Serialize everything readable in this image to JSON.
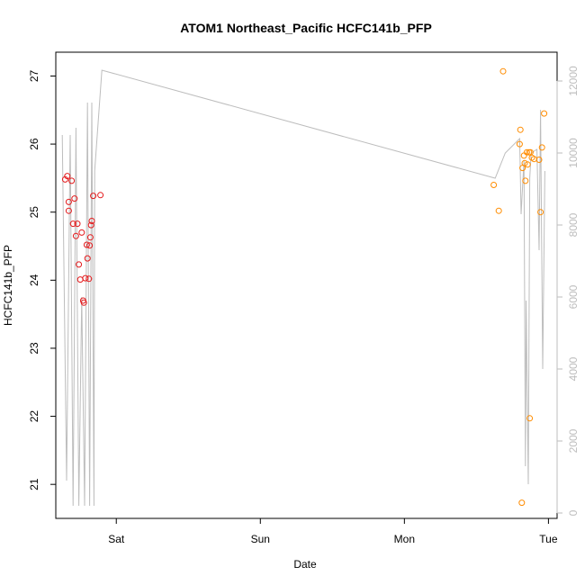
{
  "chart_data": {
    "type": "scatter",
    "title": "ATOM1 Northeast_Pacific HCFC141b_PFP",
    "xlabel": "Date",
    "ylabel": "HCFC141b_PFP",
    "x_ticks": [
      "Sat",
      "Sun",
      "Mon",
      "Tue"
    ],
    "y_ticks": [
      21,
      22,
      23,
      24,
      25,
      26,
      27
    ],
    "y2_ticks": [
      0,
      2000,
      4000,
      6000,
      8000,
      10000,
      12000
    ],
    "xlim_days": [
      -0.42,
      3.06
    ],
    "ylim": [
      20.5,
      27.35
    ],
    "y2lim": [
      -150,
      12800
    ],
    "colors": {
      "series_red": "#e41a1c",
      "series_orange": "#ff8c00",
      "altitude_line": "#bdbdbd",
      "right_axis": "#bdbdbd"
    },
    "series": [
      {
        "color": "#e41a1c",
        "points": [
          [
            -0.355,
            25.48
          ],
          [
            -0.34,
            25.53
          ],
          [
            -0.33,
            25.15
          ],
          [
            -0.33,
            25.02
          ],
          [
            -0.31,
            25.46
          ],
          [
            -0.3,
            24.83
          ],
          [
            -0.29,
            25.2
          ],
          [
            -0.28,
            24.65
          ],
          [
            -0.27,
            24.83
          ],
          [
            -0.26,
            24.23
          ],
          [
            -0.25,
            24.01
          ],
          [
            -0.24,
            24.7
          ],
          [
            -0.23,
            23.7
          ],
          [
            -0.225,
            23.67
          ],
          [
            -0.215,
            24.03
          ],
          [
            -0.205,
            24.52
          ],
          [
            -0.2,
            24.32
          ],
          [
            -0.19,
            24.02
          ],
          [
            -0.185,
            24.51
          ],
          [
            -0.18,
            24.63
          ],
          [
            -0.175,
            24.81
          ],
          [
            -0.17,
            24.87
          ],
          [
            -0.16,
            25.24
          ],
          [
            -0.11,
            25.25
          ]
        ]
      },
      {
        "color": "#ff8c00",
        "points": [
          [
            2.62,
            25.4
          ],
          [
            2.655,
            25.02
          ],
          [
            2.685,
            27.07
          ],
          [
            2.8,
            26.0
          ],
          [
            2.805,
            26.21
          ],
          [
            2.82,
            25.65
          ],
          [
            2.83,
            25.83
          ],
          [
            2.835,
            25.72
          ],
          [
            2.84,
            25.46
          ],
          [
            2.85,
            25.88
          ],
          [
            2.855,
            25.7
          ],
          [
            2.865,
            25.88
          ],
          [
            2.87,
            21.97
          ],
          [
            2.875,
            25.88
          ],
          [
            2.885,
            25.8
          ],
          [
            2.9,
            25.78
          ],
          [
            2.935,
            25.77
          ],
          [
            2.945,
            25.0
          ],
          [
            2.955,
            25.95
          ],
          [
            2.97,
            26.45
          ],
          [
            2.815,
            20.73
          ]
        ]
      }
    ],
    "altitude_line": [
      [
        -0.375,
        10500
      ],
      [
        -0.345,
        900
      ],
      [
        -0.32,
        10500
      ],
      [
        -0.3,
        200
      ],
      [
        -0.28,
        10700
      ],
      [
        -0.26,
        200
      ],
      [
        -0.24,
        6000
      ],
      [
        -0.22,
        200
      ],
      [
        -0.2,
        11400
      ],
      [
        -0.185,
        200
      ],
      [
        -0.17,
        11400
      ],
      [
        -0.155,
        200
      ],
      [
        -0.15,
        9500
      ],
      [
        -0.1,
        12300
      ],
      [
        2.63,
        9300
      ],
      [
        2.7,
        10000
      ],
      [
        2.8,
        10400
      ],
      [
        2.81,
        8300
      ],
      [
        2.83,
        9800
      ],
      [
        2.84,
        1300
      ],
      [
        2.845,
        5900
      ],
      [
        2.86,
        800
      ],
      [
        2.87,
        9300
      ],
      [
        2.88,
        10000
      ],
      [
        2.92,
        10100
      ],
      [
        2.935,
        7300
      ],
      [
        2.945,
        11200
      ],
      [
        2.96,
        4000
      ],
      [
        2.975,
        9500
      ]
    ]
  }
}
